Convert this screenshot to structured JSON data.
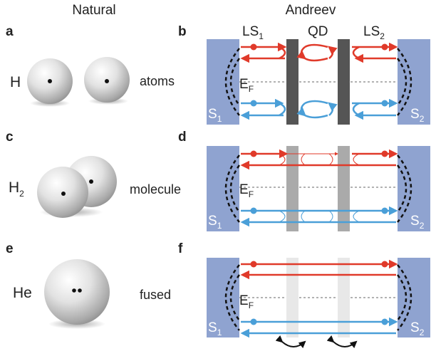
{
  "headers": {
    "natural": "Natural",
    "andreev": "Andreev"
  },
  "panels": [
    "a",
    "b",
    "c",
    "d",
    "e",
    "f"
  ],
  "natural": {
    "rows": [
      {
        "element": "H",
        "element_sub": "",
        "description": "atoms"
      },
      {
        "element": "H",
        "element_sub": "2",
        "description": "molecule"
      },
      {
        "element": "He",
        "element_sub": "",
        "description": "fused"
      }
    ]
  },
  "andreev": {
    "top_labels": {
      "ls1": "LS",
      "ls1_sub": "1",
      "qd": "QD",
      "ls2": "LS",
      "ls2_sub": "2"
    },
    "fermi": {
      "label": "E",
      "sub": "F"
    },
    "left_lead": {
      "label": "S",
      "sub": "1"
    },
    "right_lead": {
      "label": "S",
      "sub": "2"
    }
  },
  "colors": {
    "electron": "#e03a2a",
    "hole": "#4a9fd8",
    "superconductor": "#8fa3d0",
    "barrier_opaque": "#555555",
    "barrier_semi": "#aaaaaa",
    "barrier_transparent": "#e8e8e8"
  },
  "icons": [
    "sphere-icon",
    "double-arrow-icon"
  ]
}
